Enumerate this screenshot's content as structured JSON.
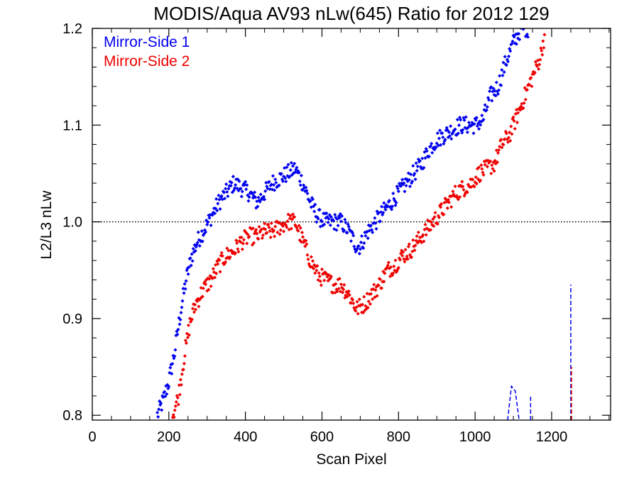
{
  "chart_data": {
    "type": "scatter",
    "title": "MODIS/Aqua AV93 nLw(645) Ratio for 2012 129",
    "xlabel": "Scan Pixel",
    "ylabel": "L2/L3 nLw",
    "xlim": [
      0,
      1354
    ],
    "ylim": [
      0.795,
      1.2
    ],
    "xticks": [
      0,
      200,
      400,
      600,
      800,
      1000,
      1200
    ],
    "xtick_labels": [
      "0",
      "200",
      "400",
      "600",
      "800",
      "1000",
      "1200"
    ],
    "yticks": [
      0.8,
      0.9,
      1.0,
      1.1,
      1.2
    ],
    "ytick_labels": [
      "0.8",
      "0.9",
      "1.0",
      "1.1",
      "1.2"
    ],
    "reference_line": 1.0,
    "grid": false,
    "legend_position": "top-left",
    "series": [
      {
        "name": "Mirror-Side 1",
        "color": "#0000ee",
        "x": [
          170,
          185,
          200,
          215,
          230,
          245,
          260,
          275,
          290,
          310,
          330,
          350,
          370,
          390,
          410,
          430,
          450,
          470,
          490,
          510,
          530,
          550,
          570,
          590,
          610,
          630,
          650,
          670,
          690,
          700,
          720,
          740,
          760,
          780,
          800,
          820,
          840,
          860,
          880,
          900,
          920,
          940,
          960,
          980,
          1000,
          1020,
          1040,
          1060,
          1080,
          1100,
          1120,
          1140
        ],
        "y": [
          0.8,
          0.815,
          0.835,
          0.865,
          0.905,
          0.94,
          0.965,
          0.98,
          0.99,
          1.005,
          1.02,
          1.03,
          1.04,
          1.035,
          1.03,
          1.02,
          1.03,
          1.04,
          1.045,
          1.05,
          1.055,
          1.04,
          1.02,
          1.005,
          1.0,
          1.0,
          1.0,
          0.99,
          0.975,
          0.975,
          0.99,
          1.0,
          1.01,
          1.02,
          1.03,
          1.04,
          1.05,
          1.06,
          1.075,
          1.085,
          1.09,
          1.095,
          1.1,
          1.1,
          1.1,
          1.105,
          1.13,
          1.14,
          1.165,
          1.185,
          1.2,
          1.2
        ],
        "vertical_segments": [
          {
            "x": 1250,
            "y": [
              0.795,
              0.935
            ]
          },
          {
            "x": 1145,
            "y": [
              0.795,
              0.82
            ]
          }
        ],
        "hump": {
          "x": [
            1085,
            1095,
            1105,
            1115
          ],
          "y": [
            0.795,
            0.83,
            0.825,
            0.795
          ]
        }
      },
      {
        "name": "Mirror-Side 2",
        "color": "#ee0000",
        "x": [
          210,
          225,
          240,
          255,
          270,
          290,
          310,
          330,
          350,
          370,
          390,
          410,
          430,
          450,
          470,
          490,
          510,
          530,
          550,
          570,
          590,
          610,
          630,
          650,
          670,
          690,
          710,
          730,
          750,
          770,
          790,
          810,
          830,
          850,
          870,
          890,
          910,
          930,
          950,
          970,
          990,
          1010,
          1030,
          1050,
          1070,
          1090,
          1110,
          1130,
          1150,
          1170,
          1185
        ],
        "y": [
          0.8,
          0.82,
          0.86,
          0.895,
          0.915,
          0.93,
          0.94,
          0.955,
          0.965,
          0.97,
          0.98,
          0.985,
          0.985,
          0.99,
          0.99,
          0.995,
          1.0,
          1.0,
          0.98,
          0.96,
          0.945,
          0.94,
          0.935,
          0.935,
          0.925,
          0.91,
          0.915,
          0.925,
          0.935,
          0.95,
          0.955,
          0.965,
          0.97,
          0.98,
          0.99,
          1.0,
          1.01,
          1.02,
          1.03,
          1.035,
          1.04,
          1.05,
          1.055,
          1.06,
          1.08,
          1.09,
          1.11,
          1.13,
          1.15,
          1.17,
          1.2
        ],
        "vertical_segments": [
          {
            "x": 1252,
            "y": [
              0.795,
              0.85
            ]
          }
        ]
      }
    ]
  }
}
